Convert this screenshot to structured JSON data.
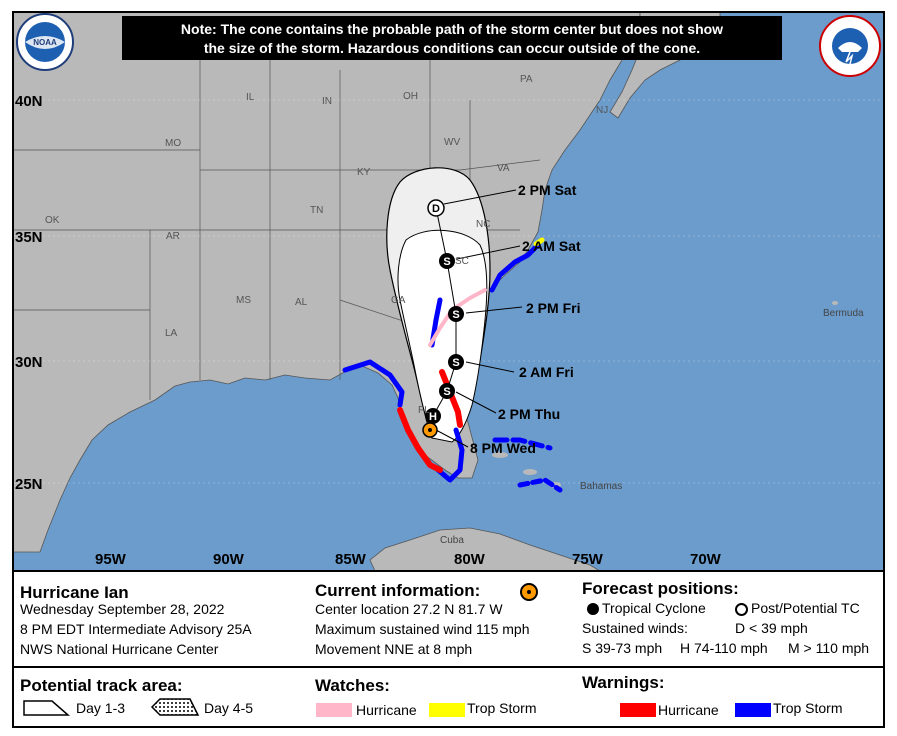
{
  "note": {
    "line1": "Note: The cone contains the probable path of the storm center but does not show",
    "line2": "the size of the storm. Hazardous conditions can occur outside of the cone."
  },
  "latitudes": [
    "40N",
    "35N",
    "30N",
    "25N"
  ],
  "longitudes": [
    "95W",
    "90W",
    "85W",
    "80W",
    "75W",
    "70W"
  ],
  "states": {
    "pa": "PA",
    "nj": "NJ",
    "il": "IL",
    "in": "IN",
    "oh": "OH",
    "wv": "WV",
    "va": "VA",
    "mo": "MO",
    "ky": "KY",
    "tn": "TN",
    "nc": "NC",
    "ok": "OK",
    "ar": "AR",
    "sc": "SC",
    "ms": "MS",
    "al": "AL",
    "ga": "GA",
    "la": "LA",
    "fl": "FL"
  },
  "places": {
    "bermuda": "Bermuda",
    "bahamas": "Bahamas",
    "cuba": "Cuba"
  },
  "forecast_labels": {
    "sat_2pm": "2 PM Sat",
    "sat_2am": "2 AM Sat",
    "fri_2pm": "2 PM Fri",
    "fri_2am": "2 AM Fri",
    "thu_2pm": "2 PM Thu",
    "wed_8pm": "8 PM Wed"
  },
  "markers": {
    "depression": "D",
    "storm": "S",
    "hurricane": "H"
  },
  "storm": {
    "name": "Hurricane Ian",
    "date": "Wednesday September 28, 2022",
    "advisory": "8 PM EDT Intermediate Advisory 25A",
    "center": "NWS National Hurricane Center"
  },
  "current": {
    "title": "Current information:",
    "location": "Center location 27.2 N 81.7 W",
    "wind": "Maximum sustained wind 115 mph",
    "movement": "Movement NNE at 8 mph"
  },
  "forecast": {
    "title": "Forecast positions:",
    "tropical": "Tropical Cyclone",
    "post": "Post/Potential TC",
    "sustained": "Sustained winds:",
    "d_range": "D < 39 mph",
    "s_range": "S 39-73 mph",
    "h_range": "H 74-110 mph",
    "m_range": "M > 110 mph"
  },
  "track_area": {
    "title": "Potential track area:",
    "day13": "Day 1-3",
    "day45": "Day 4-5"
  },
  "watches": {
    "title": "Watches:",
    "hurricane": "Hurricane",
    "trop_storm": "Trop Storm"
  },
  "warnings": {
    "title": "Warnings:",
    "hurricane": "Hurricane",
    "trop_storm": "Trop Storm"
  },
  "colors": {
    "ocean": "#6b9ccc",
    "land": "#b9b9b9",
    "hurricane_warning": "#ff0000",
    "trop_storm_warning": "#0000ff",
    "hurricane_watch": "#ffb6c8",
    "trop_storm_watch": "#ffff00",
    "current_marker": "#ff9900"
  },
  "logos": {
    "noaa": "NOAA",
    "nws": "NATIONAL WEATHER SERVICE"
  }
}
